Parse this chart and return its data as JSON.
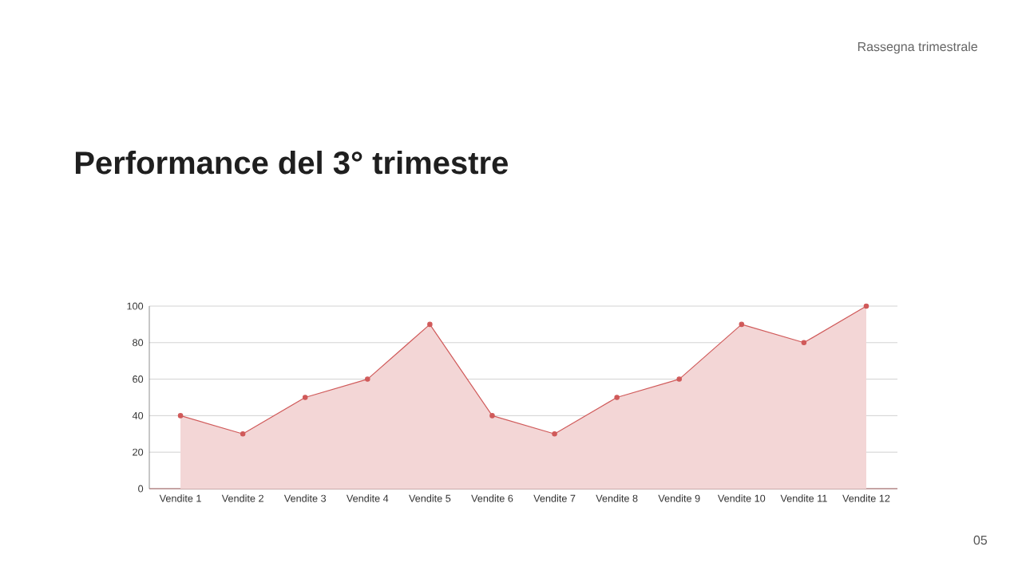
{
  "chart_data": {
    "type": "area",
    "title": "Performance del 3° trimestre",
    "annotations": [
      "Rassegna trimestrale",
      "05"
    ],
    "categories": [
      "Vendite 1",
      "Vendite 2",
      "Vendite 3",
      "Vendite 4",
      "Vendite 5",
      "Vendite 6",
      "Vendite 7",
      "Vendite 8",
      "Vendite 9",
      "Vendite 10",
      "Vendite 11",
      "Vendite 12"
    ],
    "values": [
      40,
      30,
      50,
      60,
      90,
      40,
      30,
      50,
      60,
      90,
      80,
      100
    ],
    "color": "#d05a5a",
    "ylim": [
      0,
      100
    ],
    "yticks": [
      0,
      20,
      40,
      60,
      80,
      100
    ],
    "grid": "y",
    "marker": "circle"
  }
}
